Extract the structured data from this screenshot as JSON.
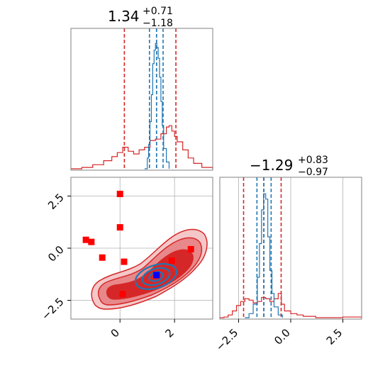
{
  "colors": {
    "red": "#d62728",
    "blue": "#1f77b4",
    "marker_red": "#ff0000",
    "marker_blue": "#0000ff",
    "contour_fill_dark": "#d62728",
    "contour_fill_mid": "#e8888a",
    "contour_fill_light": "#f4c7c8"
  },
  "chart_data": [
    {
      "panel": "param1-histogram",
      "type": "line",
      "title": {
        "value": "1.34",
        "upper": "+0.71",
        "lower": "−1.18"
      },
      "xlim": [
        -1.8,
        3.4
      ],
      "series": [
        {
          "color": "red",
          "x": [
            -1.8,
            -1.4,
            -1.0,
            -0.6,
            -0.3,
            -0.1,
            0.1,
            0.3,
            0.5,
            0.7,
            0.9,
            1.1,
            1.3,
            1.5,
            1.7,
            1.8,
            1.9,
            2.0,
            2.1,
            2.3,
            2.5,
            2.7,
            3.0,
            3.4
          ],
          "y": [
            0,
            0.01,
            0.03,
            0.06,
            0.09,
            0.12,
            0.16,
            0.13,
            0.11,
            0.14,
            0.16,
            0.21,
            0.22,
            0.26,
            0.31,
            0.32,
            0.28,
            0.24,
            0.2,
            0.14,
            0.08,
            0.04,
            0.01,
            0
          ]
        },
        {
          "color": "blue",
          "x": [
            0.9,
            1.0,
            1.05,
            1.1,
            1.15,
            1.2,
            1.25,
            1.3,
            1.35,
            1.4,
            1.45,
            1.5,
            1.55,
            1.6,
            1.7,
            1.8
          ],
          "y": [
            0,
            0.08,
            0.18,
            0.35,
            0.55,
            0.78,
            0.88,
            0.93,
            0.9,
            0.82,
            0.68,
            0.5,
            0.32,
            0.15,
            0.05,
            0
          ]
        }
      ],
      "vlines_red": [
        0.16,
        1.34,
        2.05
      ],
      "vlines_blue": [
        1.08,
        1.34,
        1.58
      ]
    },
    {
      "panel": "2d-contour",
      "type": "scatter",
      "xlim": [
        -1.8,
        3.4
      ],
      "ylim": [
        -3.4,
        3.4
      ],
      "xticks": [
        0,
        2
      ],
      "yticks": [
        -2.5,
        0.0,
        2.5
      ],
      "xticklabels": [
        "0",
        "2"
      ],
      "yticklabels": [
        "−2.5",
        "0.0",
        "2.5"
      ],
      "red_markers": [
        {
          "x": -1.25,
          "y": 0.4
        },
        {
          "x": -1.05,
          "y": 0.3
        },
        {
          "x": -0.65,
          "y": -0.45
        },
        {
          "x": 0.0,
          "y": 2.6
        },
        {
          "x": 0.0,
          "y": 1.0
        },
        {
          "x": 0.15,
          "y": -0.65
        },
        {
          "x": 0.1,
          "y": -2.2
        },
        {
          "x": 1.9,
          "y": -0.6
        },
        {
          "x": 2.6,
          "y": -0.05
        }
      ],
      "blue_marker": {
        "x": 1.34,
        "y": -1.29
      }
    },
    {
      "panel": "param2-histogram",
      "type": "line",
      "title": {
        "value": "−1.29",
        "upper": "+0.83",
        "lower": "−0.97"
      },
      "xlim": [
        -3.4,
        3.4
      ],
      "xticks": [
        -2.5,
        0.0,
        2.5
      ],
      "xticklabels": [
        "−2.5",
        "0.0",
        "2.5"
      ],
      "series": [
        {
          "color": "red",
          "x": [
            -3.4,
            -3.2,
            -3.0,
            -2.8,
            -2.6,
            -2.4,
            -2.2,
            -2.0,
            -1.8,
            -1.6,
            -1.4,
            -1.2,
            -1.0,
            -0.8,
            -0.6,
            -0.45,
            -0.3,
            0.0,
            0.3,
            0.6,
            0.9,
            1.2,
            1.5,
            2.0,
            2.5,
            3.0,
            3.4
          ],
          "y": [
            0,
            0.005,
            0.02,
            0.05,
            0.09,
            0.12,
            0.14,
            0.13,
            0.11,
            0.12,
            0.15,
            0.14,
            0.12,
            0.14,
            0.18,
            0.1,
            0.05,
            0.03,
            0.02,
            0.01,
            0.01,
            0.0,
            0.0,
            0.0,
            0.005,
            0.005,
            0
          ]
        },
        {
          "color": "blue",
          "x": [
            -2.2,
            -2.0,
            -1.8,
            -1.6,
            -1.5,
            -1.4,
            -1.3,
            -1.2,
            -1.1,
            -1.0,
            -0.9,
            -0.8,
            -0.6,
            -0.4
          ],
          "y": [
            0,
            0.03,
            0.1,
            0.3,
            0.55,
            0.8,
            0.92,
            0.88,
            0.6,
            0.35,
            0.18,
            0.08,
            0.02,
            0
          ]
        }
      ],
      "vlines_red": [
        -2.26,
        -1.29,
        -0.46
      ],
      "vlines_blue": [
        -1.62,
        -1.29,
        -0.94
      ]
    }
  ]
}
